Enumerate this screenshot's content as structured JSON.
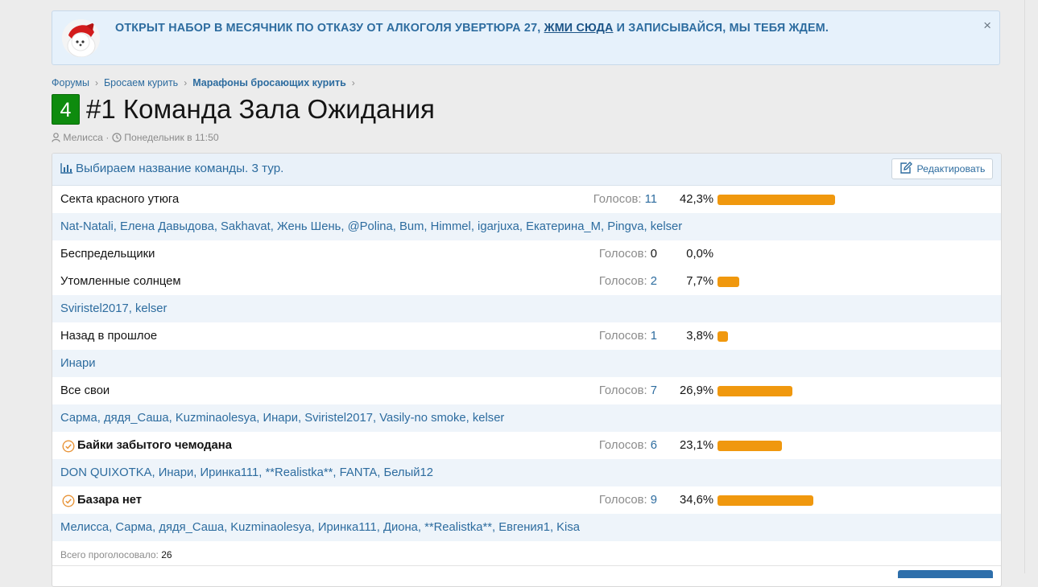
{
  "notice": {
    "text_before": "ОТКРЫТ НАБОР В МЕСЯЧНИК ПО ОТКАЗУ ОТ АЛКОГОЛЯ УВЕРТЮРА 27, ",
    "link": "ЖМИ СЮДА",
    "text_after": " И ЗАПИСЫВАЙСЯ, МЫ ТЕБЯ ЖДЕМ.",
    "close": "×"
  },
  "breadcrumb": [
    {
      "label": "Форумы"
    },
    {
      "label": "Бросаем курить"
    },
    {
      "label": "Марафоны бросающих курить"
    }
  ],
  "thread": {
    "prefix": "4",
    "title": "#1 Команда Зала Ожидания",
    "author": "Мелисса",
    "separator": " · ",
    "date": "Понедельник в 11:50"
  },
  "poll": {
    "title": "Выбираем название команды. 3 тур.",
    "edit_label": "Редактировать",
    "votes_label": "Голосов:",
    "total_label": "Всего проголосовало:",
    "total": "26",
    "responses": [
      {
        "text": "Секта красного утюга",
        "votes": "11",
        "percent": "42,3%",
        "share": 0.423,
        "bold": false,
        "voters": [
          "Nat-Natali",
          "Елена Давыдова",
          "Sakhavat",
          "Жень Шень",
          "@Polina",
          "Bum",
          "Himmel",
          "igarjuxa",
          "Екатерина_М",
          "Pingva",
          "kelser"
        ]
      },
      {
        "text": "Беспредельщики",
        "votes": "0",
        "percent": "0,0%",
        "share": 0,
        "bold": false,
        "voters": []
      },
      {
        "text": "Утомленные солнцем",
        "votes": "2",
        "percent": "7,7%",
        "share": 0.077,
        "bold": false,
        "voters": [
          "Sviristel2017",
          "kelser"
        ]
      },
      {
        "text": "Назад в прошлое",
        "votes": "1",
        "percent": "3,8%",
        "share": 0.038,
        "bold": false,
        "voters": [
          "Инари"
        ]
      },
      {
        "text": "Все свои",
        "votes": "7",
        "percent": "26,9%",
        "share": 0.269,
        "bold": false,
        "voters": [
          "Сарма",
          "дядя_Саша",
          "Kuzminaolesya",
          "Инари",
          "Sviristel2017",
          "Vasily-no smoke",
          "kelser"
        ]
      },
      {
        "text": "Байки забытого чемодана",
        "votes": "6",
        "percent": "23,1%",
        "share": 0.231,
        "bold": true,
        "voters": [
          "DON QUIXOTKA",
          "Инари",
          "Иринка111",
          "**Realistka**",
          "FANTA",
          "Белый12"
        ]
      },
      {
        "text": "Базара нет",
        "votes": "9",
        "percent": "34,6%",
        "share": 0.346,
        "bold": true,
        "voters": [
          "Мелисса",
          "Сарма",
          "дядя_Саша",
          "Kuzminaolesya",
          "Иринка111",
          "Диона",
          "**Realistka**",
          "Евгения1",
          "Kisa"
        ]
      }
    ]
  },
  "colors": {
    "accent": "#2d6c9f",
    "bar": "#f0980e",
    "check": "#e8953a",
    "prefix_badge": "#0e8b0e"
  },
  "icons": {
    "user": "user-icon",
    "clock": "clock-icon",
    "poll": "bar-chart-icon",
    "edit": "edit-icon",
    "check": "check-circle-icon"
  }
}
